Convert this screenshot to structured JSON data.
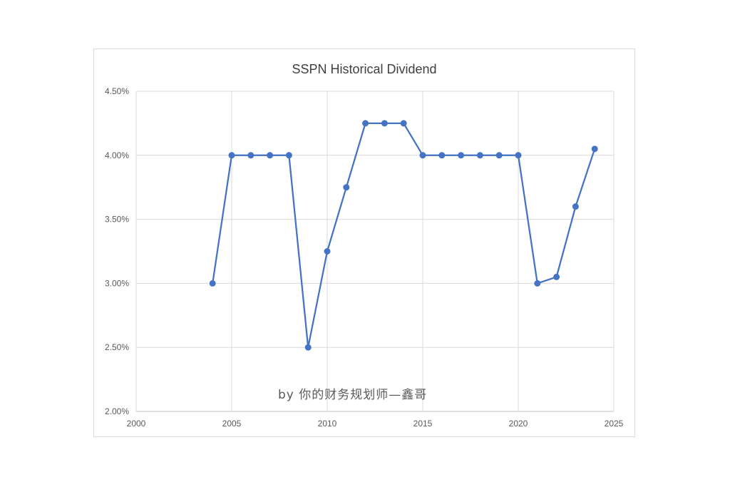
{
  "chart_data": {
    "type": "line",
    "title": "SSPN Historical Dividend",
    "xlabel": "",
    "ylabel": "",
    "xlim": [
      2000,
      2025
    ],
    "ylim": [
      2.0,
      4.5
    ],
    "x_ticks": [
      "2000",
      "2005",
      "2010",
      "2015",
      "2020",
      "2025"
    ],
    "y_ticks": [
      "2.00%",
      "2.50%",
      "3.00%",
      "3.50%",
      "4.00%",
      "4.50%"
    ],
    "grid": true,
    "legend": "none",
    "line_color": "#4472c4",
    "series": [
      {
        "x": [
          2004,
          2005,
          2006,
          2007,
          2008,
          2009,
          2010,
          2011,
          2012,
          2013,
          2014,
          2015,
          2016,
          2017,
          2018,
          2019,
          2020,
          2021,
          2022,
          2023,
          2024
        ],
        "values": [
          3.0,
          4.0,
          4.0,
          4.0,
          4.0,
          2.5,
          3.25,
          3.75,
          4.25,
          4.25,
          4.25,
          4.0,
          4.0,
          4.0,
          4.0,
          4.0,
          4.0,
          3.0,
          3.05,
          3.6,
          4.05
        ]
      }
    ],
    "watermark": "by 你的财务规划师—鑫哥"
  }
}
